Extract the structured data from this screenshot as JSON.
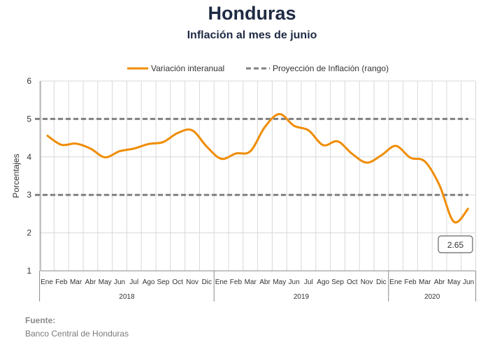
{
  "header": {
    "title": "Honduras",
    "subtitle": "Inflación al mes de junio"
  },
  "source": {
    "label": "Fuente:",
    "text": "Banco Central de Honduras"
  },
  "chart_data": {
    "type": "line",
    "title": "Honduras",
    "subtitle": "Inflación al mes de junio",
    "ylabel": "Porcentajes",
    "xlabel": "",
    "ylim": [
      1,
      6
    ],
    "yticks": [
      1,
      2,
      3,
      4,
      5,
      6
    ],
    "grid": true,
    "legend_position": "top",
    "month_labels": [
      "Ene",
      "Feb",
      "Mar",
      "Abr",
      "May",
      "Jun",
      "Jul",
      "Ago",
      "Sep",
      "Oct",
      "Nov",
      "Dic",
      "Ene",
      "Feb",
      "Mar",
      "Abr",
      "May",
      "Jun",
      "Jul",
      "Ago",
      "Sep",
      "Oct",
      "Nov",
      "Dic",
      "Ene",
      "Feb",
      "Mar",
      "Abr",
      "May",
      "Jun"
    ],
    "years": [
      {
        "label": "2018",
        "months": 12
      },
      {
        "label": "2019",
        "months": 12
      },
      {
        "label": "2020",
        "months": 6
      }
    ],
    "series": [
      {
        "name": "Variación interanual",
        "color": "#f08c00",
        "style": "solid",
        "values": [
          4.57,
          4.32,
          4.35,
          4.22,
          3.99,
          4.15,
          4.22,
          4.34,
          4.39,
          4.63,
          4.7,
          4.27,
          3.95,
          4.09,
          4.15,
          4.79,
          5.13,
          4.82,
          4.7,
          4.31,
          4.41,
          4.08,
          3.85,
          4.04,
          4.29,
          3.98,
          3.88,
          3.26,
          2.29,
          2.65
        ]
      },
      {
        "name": "Proyección de Inflación (rango)",
        "color": "#808080",
        "style": "dashed",
        "upper": 5,
        "lower": 3
      }
    ],
    "annotation": {
      "label": "2.65",
      "value": 2.65
    }
  }
}
